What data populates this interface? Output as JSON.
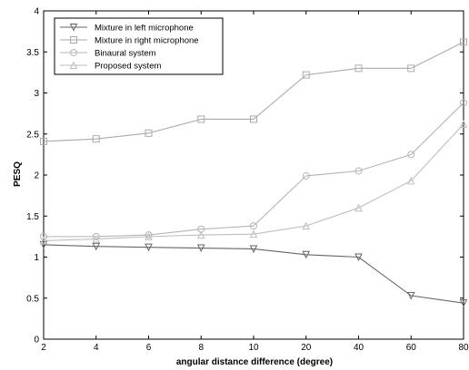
{
  "chart_data": {
    "type": "line",
    "categories": [
      "2",
      "4",
      "6",
      "8",
      "10",
      "20",
      "40",
      "60",
      "80"
    ],
    "xlabel": "angular distance difference (degree)",
    "ylabel": "PESQ",
    "ylim": [
      0,
      4
    ],
    "yticks": [
      "0",
      "0.5",
      "1",
      "1.5",
      "2",
      "2.5",
      "3",
      "3.5",
      "4"
    ],
    "grid": false,
    "legend_position": "top-left",
    "series": [
      {
        "name": "Mixture in left microphone",
        "color": "#666666",
        "marker": "triangle-down",
        "values": [
          1.15,
          1.13,
          1.12,
          1.11,
          1.1,
          1.03,
          1.0,
          0.53,
          0.44
        ]
      },
      {
        "name": "Mixture in right microphone",
        "color": "#aaaaaa",
        "marker": "square",
        "values": [
          2.41,
          2.44,
          2.51,
          2.68,
          2.68,
          3.22,
          3.3,
          3.3,
          3.62
        ]
      },
      {
        "name": "Binaural system",
        "color": "#b4b4b4",
        "marker": "circle",
        "values": [
          1.25,
          1.25,
          1.27,
          1.34,
          1.38,
          1.99,
          2.05,
          2.25,
          2.88
        ]
      },
      {
        "name": "Proposed system",
        "color": "#bdbdbd",
        "marker": "triangle-up",
        "values": [
          1.2,
          1.22,
          1.25,
          1.27,
          1.28,
          1.38,
          1.6,
          1.93,
          2.62
        ]
      }
    ]
  }
}
